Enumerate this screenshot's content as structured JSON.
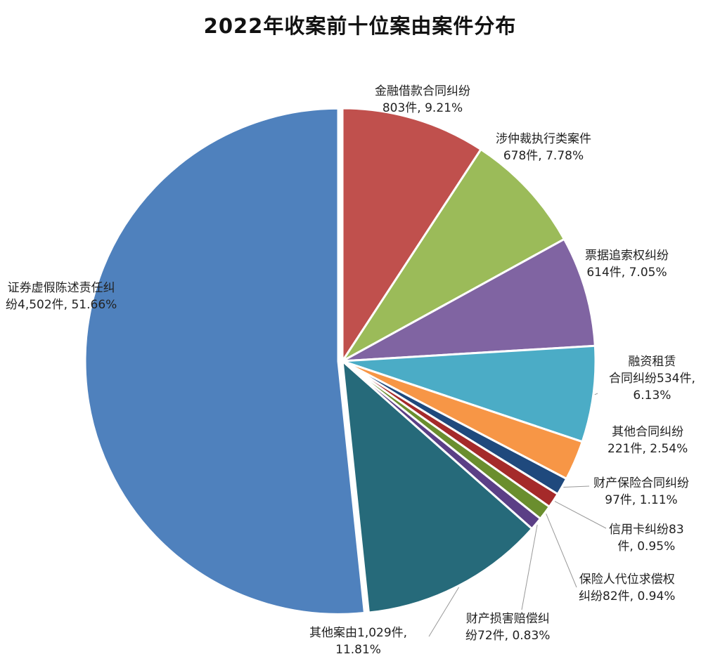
{
  "chart_data": {
    "type": "pie",
    "title": "2022年收案前十位案由案件分布",
    "slices": [
      {
        "name": "证券虚假陈述责任纠纷",
        "count": 4502,
        "percent": 51.66,
        "color": "#4F81BD",
        "label_lines": [
          "证券虚假陈述责任纠",
          "纷4,502件, 51.66%"
        ]
      },
      {
        "name": "金融借款合同纠纷",
        "count": 803,
        "percent": 9.21,
        "color": "#C0504D",
        "label_lines": [
          "金融借款合同纠纷",
          "803件, 9.21%"
        ]
      },
      {
        "name": "涉仲裁执行类案件",
        "count": 678,
        "percent": 7.78,
        "color": "#9BBB59",
        "label_lines": [
          "涉仲裁执行类案件",
          "678件, 7.78%"
        ]
      },
      {
        "name": "票据追索权纠纷",
        "count": 614,
        "percent": 7.05,
        "color": "#8064A2",
        "label_lines": [
          "票据追索权纠纷",
          "614件, 7.05%"
        ]
      },
      {
        "name": "融资租赁合同纠纷",
        "count": 534,
        "percent": 6.13,
        "color": "#4BACC6",
        "label_lines": [
          "融资租赁",
          "合同纠纷534件,",
          "6.13%"
        ]
      },
      {
        "name": "其他合同纠纷",
        "count": 221,
        "percent": 2.54,
        "color": "#F79646",
        "label_lines": [
          "其他合同纠纷",
          "221件, 2.54%"
        ]
      },
      {
        "name": "财产保险合同纠纷",
        "count": 97,
        "percent": 1.11,
        "color": "#1F497D",
        "label_lines": [
          "财产保险合同纠纷",
          "97件, 1.11%"
        ]
      },
      {
        "name": "信用卡纠纷",
        "count": 83,
        "percent": 0.95,
        "color": "#A52A2A",
        "label_lines": [
          "信用卡纠纷83",
          "件, 0.95%"
        ]
      },
      {
        "name": "保险人代位求偿权纠纷",
        "count": 82,
        "percent": 0.94,
        "color": "#6A8E2E",
        "label_lines": [
          "保险人代位求偿权",
          "纠纷82件, 0.94%"
        ]
      },
      {
        "name": "财产损害赔偿纠纷",
        "count": 72,
        "percent": 0.83,
        "color": "#5B3F86",
        "label_lines": [
          "财产损害赔偿纠",
          "纷72件, 0.83%"
        ]
      },
      {
        "name": "其他案由",
        "count": 1029,
        "percent": 11.81,
        "color": "#266A7A",
        "label_lines": [
          "其他案由1,029件,",
          "11.81%"
        ]
      }
    ]
  }
}
